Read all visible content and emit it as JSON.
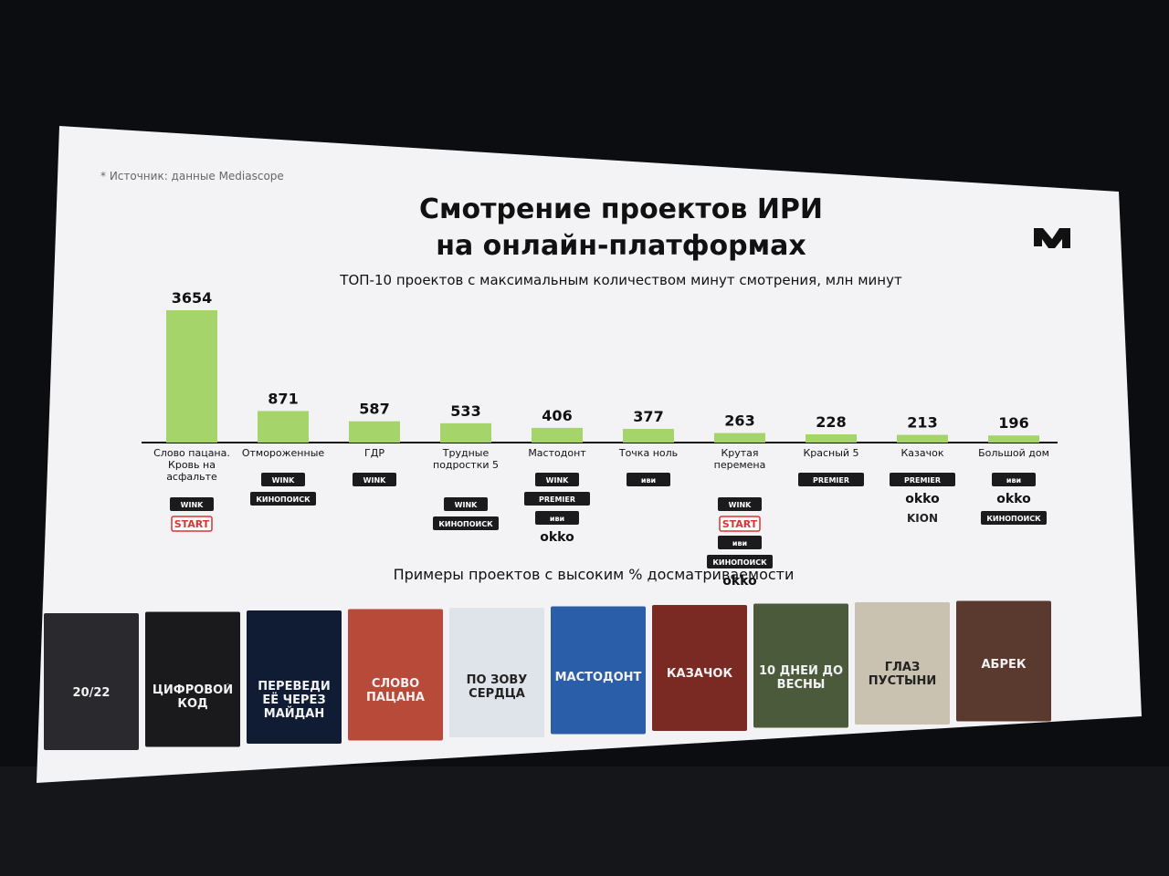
{
  "chart_data": {
    "type": "bar",
    "note": "* Источник: данные Mediascope",
    "title": "Смотрение проектов ИРИ на онлайн-платформах",
    "subtitle": "ТОП-10 проектов с максимальным количеством минут смотрения, млн минут",
    "categories": [
      "Слово пацана. Кровь на асфальте",
      "Отмороженные",
      "ГДР",
      "Трудные подростки 5",
      "Мастодонт",
      "Точка ноль",
      "Крутая перемена",
      "Красный 5",
      "Казачок",
      "Большой дом"
    ],
    "values": [
      3654,
      871,
      587,
      533,
      406,
      377,
      263,
      228,
      213,
      196
    ],
    "color": "#a5d46a",
    "platforms": [
      [
        "WINK",
        "START"
      ],
      [
        "WINK",
        "КИНОПОИСК"
      ],
      [
        "WINK"
      ],
      [
        "WINK",
        "КИНОПОИСК"
      ],
      [
        "WINK",
        "PREMIER",
        "иви",
        "okko"
      ],
      [
        "иви"
      ],
      [
        "WINK",
        "START",
        "иви",
        "КИНОПОИСК",
        "okko"
      ],
      [
        "PREMIER"
      ],
      [
        "PREMIER",
        "okko",
        "KION"
      ],
      [
        "иви",
        "okko",
        "КИНОПОИСК"
      ]
    ],
    "examples_title": "Примеры проектов с высоким % досматриваемости",
    "posters": [
      "20/22",
      "ЦИФРОВОЙ КОД",
      "ПЕРЕВЕДИ ЕЁ ЧЕРЕЗ МАЙДАН",
      "СЛОВО ПАЦАНА",
      "ПО ЗОВУ СЕРДЦА",
      "МАСТОДОНТ",
      "КАЗАЧОК",
      "10 ДНЕЙ ДО ВЕСНЫ",
      "ГЛАЗ ПУСТЫНИ",
      "АБРЕК"
    ]
  }
}
